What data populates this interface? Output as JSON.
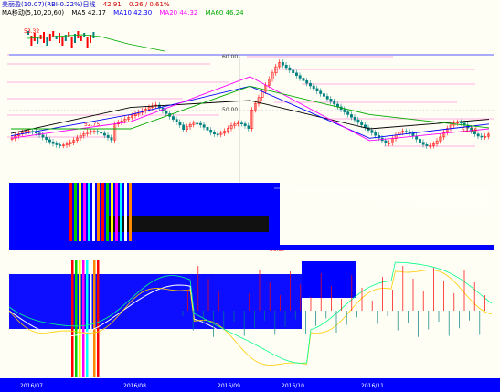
{
  "header": {
    "title": "美丽盈(10.07)(RBI-0.22%)日线",
    "price": "42.91",
    "change": "0.26 / 0.61%",
    "ma_label": "MA移动(5,10,20,60)",
    "ma5": "MA5 42.17",
    "ma10": "MA10 42.30",
    "ma20": "MA20 44.32",
    "ma60": "MA60 46.24"
  },
  "colors": {
    "up": "#ff0000",
    "down": "#008080",
    "ma5": "#000000",
    "ma10": "#0000ff",
    "ma20": "#ff00ff",
    "ma60": "#00aa00",
    "glitch_blue": "#0000ff",
    "background": "#fffef4"
  },
  "price_labels": {
    "high_mark_left": "52.75",
    "high_mark_right": "51.74",
    "low_mark_a": "42.91",
    "low_mark_b": "39.87",
    "mini_high": "53.32",
    "axis_60": "60.00",
    "axis_50": "50.00"
  },
  "date_labels": [
    "2016/07",
    "2016/08",
    "2016/09",
    "2016/10",
    "2016/11"
  ],
  "chart_data": {
    "type": "line",
    "title": "",
    "ylim": [
      35,
      62
    ],
    "x": [
      "2016/07",
      "2016/08",
      "2016/09",
      "2016/10",
      "2016/11"
    ],
    "series": [
      {
        "name": "MA5",
        "values": [
          45.0,
          50.5,
          52.0,
          46.0,
          48.0
        ]
      },
      {
        "name": "MA10",
        "values": [
          44.5,
          49.0,
          55.0,
          44.0,
          47.0
        ]
      },
      {
        "name": "MA20",
        "values": [
          44.0,
          47.5,
          57.0,
          43.5,
          46.0
        ]
      },
      {
        "name": "MA60",
        "values": [
          46.0,
          46.0,
          55.0,
          49.0,
          46.2
        ]
      }
    ]
  }
}
